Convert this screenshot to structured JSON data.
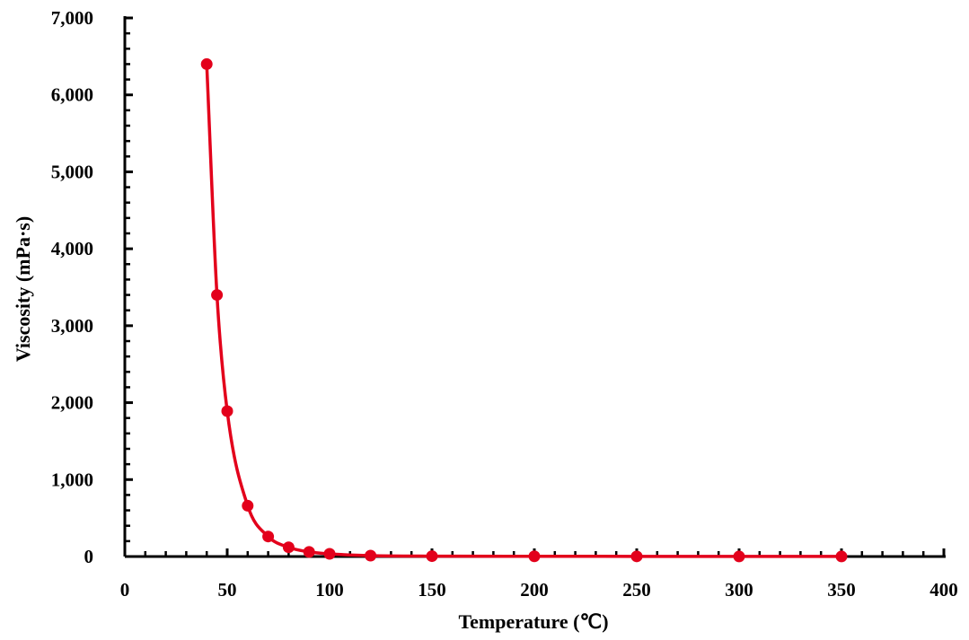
{
  "chart_data": {
    "type": "line",
    "title": "",
    "xlabel": "Temperature (℃)",
    "ylabel": "Viscosity (mPa·s)",
    "xlim": [
      0,
      400
    ],
    "ylim": [
      0,
      7000
    ],
    "x_ticks": [
      0,
      50,
      100,
      150,
      200,
      250,
      300,
      350,
      400
    ],
    "y_ticks": [
      0,
      1000,
      2000,
      3000,
      4000,
      5000,
      6000,
      7000
    ],
    "x_tick_labels": [
      "0",
      "50",
      "100",
      "150",
      "200",
      "250",
      "300",
      "350",
      "400"
    ],
    "y_tick_labels": [
      "0",
      "1,000",
      "2,000",
      "3,000",
      "4,000",
      "5,000",
      "6,000",
      "7,000"
    ],
    "grid": false,
    "legend": "none",
    "series": [
      {
        "color": "#e3001b",
        "smooth": true,
        "marker": "circle",
        "x": [
          40,
          45,
          50,
          60,
          70,
          80,
          90,
          100,
          120,
          150,
          200,
          250,
          300,
          350
        ],
        "y": [
          6400,
          3400,
          1890,
          660,
          260,
          120,
          60,
          35,
          12,
          5,
          3,
          2,
          1,
          1
        ]
      }
    ]
  }
}
